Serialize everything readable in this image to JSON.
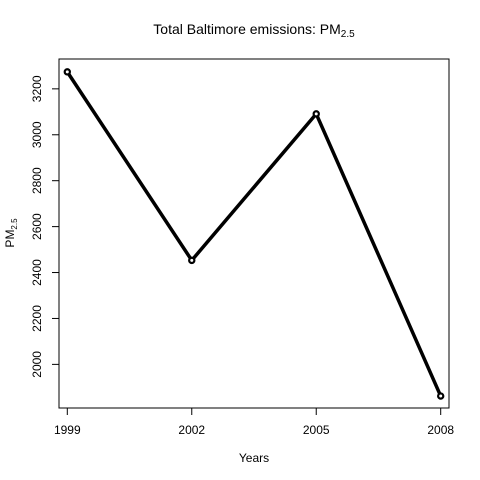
{
  "chart_data": {
    "type": "line",
    "title_main": "Total Baltimore emissions: PM",
    "title_sub": "2.5",
    "xlabel": "Years",
    "ylabel_main": "PM",
    "ylabel_sub": "2.5",
    "x": [
      1999,
      2002,
      2005,
      2008
    ],
    "y": [
      3274,
      2453,
      3091,
      1862
    ],
    "xticks": [
      1999,
      2002,
      2005,
      2008
    ],
    "yticks": [
      2000,
      2200,
      2400,
      2600,
      2800,
      3000,
      3200
    ],
    "xlim": [
      1998.8,
      2008.2
    ],
    "ylim": [
      1810,
      3330
    ],
    "line_color": "#000000",
    "grid": false,
    "legend": "none"
  }
}
